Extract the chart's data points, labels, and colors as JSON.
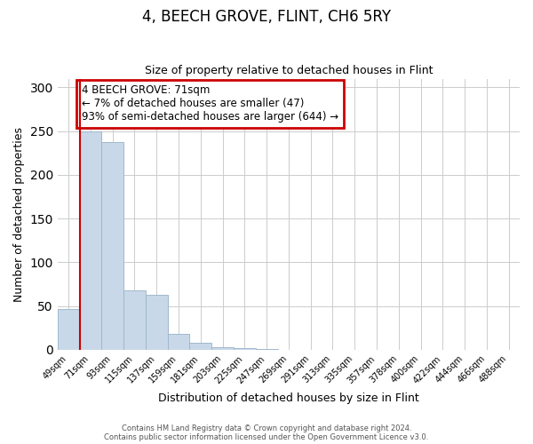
{
  "title": "4, BEECH GROVE, FLINT, CH6 5RY",
  "subtitle": "Size of property relative to detached houses in Flint",
  "xlabel": "Distribution of detached houses by size in Flint",
  "ylabel": "Number of detached properties",
  "categories": [
    "49sqm",
    "71sqm",
    "93sqm",
    "115sqm",
    "137sqm",
    "159sqm",
    "181sqm",
    "203sqm",
    "225sqm",
    "247sqm",
    "269sqm",
    "291sqm",
    "313sqm",
    "335sqm",
    "357sqm",
    "378sqm",
    "400sqm",
    "422sqm",
    "444sqm",
    "466sqm",
    "488sqm"
  ],
  "bar_values": [
    47,
    250,
    237,
    68,
    63,
    18,
    8,
    3,
    2,
    1,
    0,
    0,
    0,
    0,
    0,
    0,
    0,
    0,
    0,
    0,
    0
  ],
  "bar_color": "#c8d8e8",
  "bar_edge_color": "#a0b8cc",
  "annotation_title": "4 BEECH GROVE: 71sqm",
  "annotation_line1": "← 7% of detached houses are smaller (47)",
  "annotation_line2": "93% of semi-detached houses are larger (644) →",
  "annotation_box_color": "#ffffff",
  "annotation_border_color": "#cc0000",
  "redline_color": "#cc0000",
  "ylim": [
    0,
    310
  ],
  "yticks": [
    0,
    50,
    100,
    150,
    200,
    250,
    300
  ],
  "footer1": "Contains HM Land Registry data © Crown copyright and database right 2024.",
  "footer2": "Contains public sector information licensed under the Open Government Licence v3.0."
}
